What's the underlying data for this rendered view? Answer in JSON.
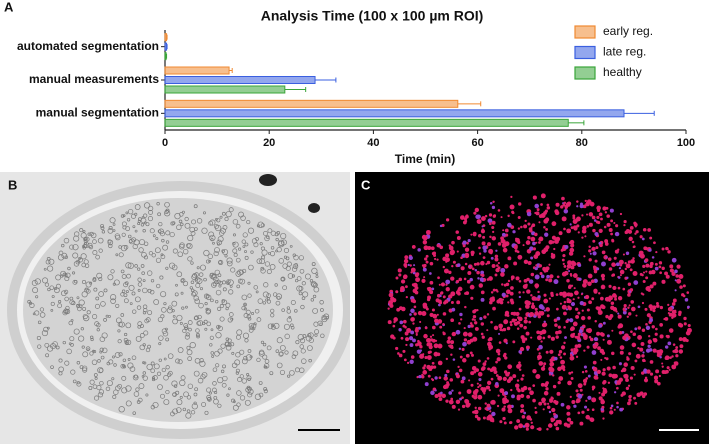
{
  "panels": {
    "a": "A",
    "b": "B",
    "c": "C"
  },
  "chart_data": {
    "type": "bar",
    "orientation": "horizontal",
    "title": "Analysis Time (100 x 100 µm ROI)",
    "x_label": "Time (min)",
    "categories": [
      "automated segmentation",
      "manual measurements",
      "manual segmentation"
    ],
    "series": [
      {
        "name": "early reg.",
        "color": "#f08a32",
        "values": [
          0.3,
          12.3,
          56.2
        ],
        "errors": [
          0.1,
          0.6,
          4.4
        ]
      },
      {
        "name": "late reg.",
        "color": "#3a5fe0",
        "values": [
          0.3,
          28.8,
          88.1
        ],
        "errors": [
          0.1,
          4.0,
          5.8
        ]
      },
      {
        "name": "healthy",
        "color": "#3aa53a",
        "values": [
          0.2,
          23.0,
          77.4
        ],
        "errors": [
          0.1,
          4.0,
          3.0
        ]
      }
    ],
    "xlim": [
      0,
      100
    ],
    "xticks": [
      0,
      20,
      40,
      60,
      80,
      100
    ],
    "legend": "top-right",
    "grid": false
  }
}
